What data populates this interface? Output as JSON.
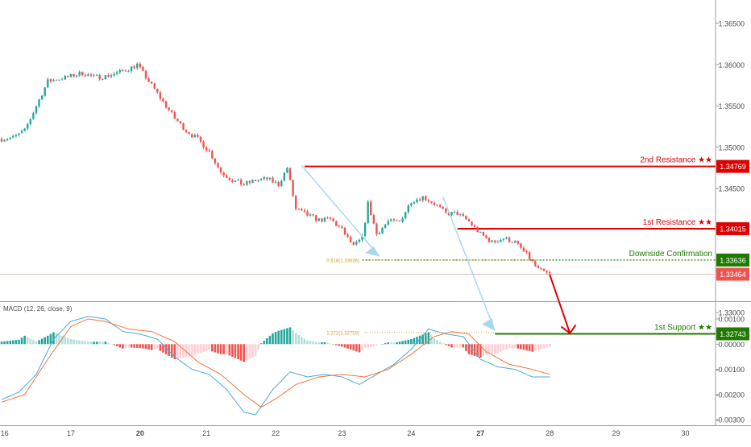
{
  "colors": {
    "background": "#ffffff",
    "bull": "#26a69a",
    "bear": "#ef5350",
    "resistance": "#e00000",
    "support": "#217a00",
    "fib": "#c8a030",
    "arrow_light": "#a8d8ee",
    "macd_line": "#4aa8d8",
    "signal_line": "#f5733a",
    "hist_up_strong": "#26a69a",
    "hist_up_weak": "#b2dfdb",
    "hist_down_strong": "#ef5350",
    "hist_down_weak": "#ffcdd2",
    "axis_text": "#4a4a4a",
    "separator": "#9e9e9e"
  },
  "chart_data": [
    {
      "type": "candlestick",
      "title": "",
      "x_tick_labels": [
        "16",
        "17",
        "20",
        "21",
        "22",
        "23",
        "24",
        "27",
        "28",
        "29",
        "30"
      ],
      "y_tick_labels": [
        "1.36500",
        "1.36000",
        "1.35500",
        "1.35000",
        "1.34500",
        "1.34000",
        "1.33500",
        "1.33000"
      ],
      "ylim": [
        1.3238,
        1.369
      ],
      "price_path": [
        [
          0,
          1.351
        ],
        [
          4,
          1.3512
        ],
        [
          8,
          1.352
        ],
        [
          12,
          1.355
        ],
        [
          16,
          1.358
        ],
        [
          20,
          1.3583
        ],
        [
          24,
          1.3586
        ],
        [
          28,
          1.359
        ],
        [
          32,
          1.3585
        ],
        [
          36,
          1.3586
        ],
        [
          40,
          1.359
        ],
        [
          44,
          1.3595
        ],
        [
          47,
          1.36
        ],
        [
          52,
          1.3575
        ],
        [
          56,
          1.3555
        ],
        [
          60,
          1.3535
        ],
        [
          64,
          1.352
        ],
        [
          68,
          1.351
        ],
        [
          72,
          1.3495
        ],
        [
          76,
          1.347
        ],
        [
          80,
          1.346
        ],
        [
          84,
          1.3455
        ],
        [
          88,
          1.346
        ],
        [
          92,
          1.3462
        ],
        [
          96,
          1.3455
        ],
        [
          99,
          1.3475
        ],
        [
          102,
          1.3425
        ],
        [
          106,
          1.3418
        ],
        [
          110,
          1.3412
        ],
        [
          114,
          1.3413
        ],
        [
          118,
          1.34
        ],
        [
          122,
          1.338
        ],
        [
          125,
          1.339
        ],
        [
          127,
          1.3432
        ],
        [
          130,
          1.3395
        ],
        [
          134,
          1.341
        ],
        [
          138,
          1.341
        ],
        [
          142,
          1.3435
        ],
        [
          146,
          1.344
        ],
        [
          150,
          1.3432
        ],
        [
          154,
          1.342
        ],
        [
          158,
          1.342
        ],
        [
          162,
          1.341
        ],
        [
          166,
          1.3395
        ],
        [
          170,
          1.3385
        ],
        [
          174,
          1.339
        ],
        [
          178,
          1.3385
        ],
        [
          182,
          1.337
        ],
        [
          186,
          1.3352
        ],
        [
          190,
          1.3346
        ]
      ],
      "levels": [
        {
          "name": "2nd Resistance",
          "label": "2nd Resistance ★★",
          "value": 1.34769,
          "price_label": "1.34769",
          "color": "#e00000"
        },
        {
          "name": "1st Resistance",
          "label": "1st Resistance ★★",
          "value": 1.34015,
          "price_label": "1.34015",
          "color": "#e00000"
        },
        {
          "name": "Downside Confirmation",
          "label": "Downside Confirmation",
          "value": 1.33636,
          "price_label": "1.33636",
          "color": "#217a00"
        },
        {
          "name": "1st Support",
          "label": "1st Support ★★",
          "value": 1.32743,
          "price_label": "1.32743",
          "color": "#217a00"
        }
      ],
      "current_price": {
        "value": 1.33464,
        "label": "1.33464"
      },
      "fibonacci": [
        {
          "label": "0.618(1.33636)",
          "value": 1.33636
        },
        {
          "label": "1.272(1.32759)",
          "value": 1.32759
        }
      ]
    },
    {
      "type": "bar",
      "title": "MACD (12, 26, close, 9)",
      "y_tick_labels": [
        "0.00100",
        "0.00000",
        "-0.00100",
        "-0.00200",
        "-0.00300"
      ],
      "ylim": [
        -0.0033,
        0.0012
      ],
      "macd": [
        [
          0,
          -0.0022
        ],
        [
          6,
          -0.0019
        ],
        [
          12,
          -0.0012
        ],
        [
          18,
          0.0002
        ],
        [
          24,
          0.0009
        ],
        [
          30,
          0.0011
        ],
        [
          36,
          0.001
        ],
        [
          42,
          0.0005
        ],
        [
          48,
          0.0004
        ],
        [
          54,
          0.0002
        ],
        [
          60,
          -0.0005
        ],
        [
          66,
          -0.001
        ],
        [
          72,
          -0.0012
        ],
        [
          78,
          -0.0018
        ],
        [
          84,
          -0.0027
        ],
        [
          88,
          -0.0028
        ],
        [
          94,
          -0.0018
        ],
        [
          100,
          -0.0011
        ],
        [
          106,
          -0.0013
        ],
        [
          112,
          -0.0012
        ],
        [
          118,
          -0.0013
        ],
        [
          124,
          -0.0016
        ],
        [
          130,
          -0.0012
        ],
        [
          136,
          -0.0008
        ],
        [
          142,
          -0.0002
        ],
        [
          148,
          0.0006
        ],
        [
          154,
          0.0004
        ],
        [
          160,
          0.0003
        ],
        [
          166,
          -0.0006
        ],
        [
          172,
          -0.0009
        ],
        [
          178,
          -0.001
        ],
        [
          184,
          -0.0013
        ],
        [
          190,
          -0.0013
        ]
      ],
      "signal": [
        [
          0,
          -0.0023
        ],
        [
          8,
          -0.002
        ],
        [
          16,
          -0.0006
        ],
        [
          24,
          0.0007
        ],
        [
          30,
          0.001
        ],
        [
          36,
          0.0009
        ],
        [
          44,
          0.0006
        ],
        [
          52,
          0.0005
        ],
        [
          60,
          0.0001
        ],
        [
          68,
          -0.0007
        ],
        [
          76,
          -0.0012
        ],
        [
          84,
          -0.002
        ],
        [
          90,
          -0.0025
        ],
        [
          96,
          -0.0021
        ],
        [
          102,
          -0.0016
        ],
        [
          110,
          -0.0013
        ],
        [
          118,
          -0.0012
        ],
        [
          126,
          -0.0013
        ],
        [
          134,
          -0.001
        ],
        [
          142,
          -0.0004
        ],
        [
          150,
          0.0003
        ],
        [
          156,
          0.0005
        ],
        [
          162,
          0.0004
        ],
        [
          168,
          -0.0003
        ],
        [
          176,
          -0.0008
        ],
        [
          184,
          -0.001
        ],
        [
          190,
          -0.0012
        ]
      ]
    }
  ]
}
